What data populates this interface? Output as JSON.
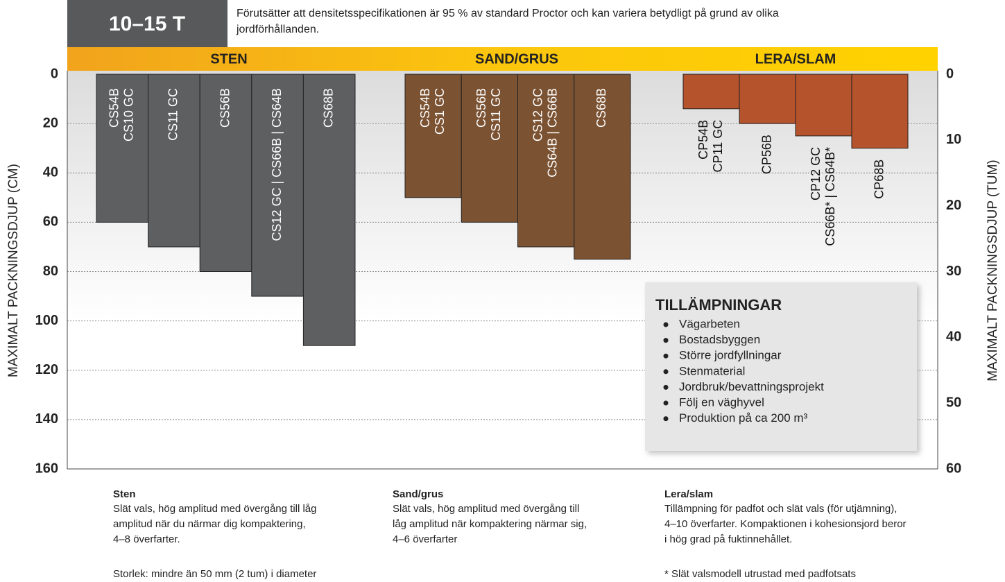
{
  "chart_data": {
    "type": "bar",
    "badge": "10–15 T",
    "note": [
      "Förutsätter att densitetsspecifikationen är 95 % av standard Proctor och kan variera betydligt på grund av olika",
      "jordförhållanden."
    ],
    "ylabel": "MAXIMALT PACKNINGSDJUP  (CM)",
    "y2label": "MAXIMALT PACKNINGSDJUP  (TUM)",
    "ylim": [
      0,
      160
    ],
    "yticks": [
      0,
      20,
      40,
      60,
      80,
      100,
      120,
      140,
      160
    ],
    "y2lim": [
      0,
      60
    ],
    "y2ticks": [
      0,
      10,
      20,
      30,
      40,
      50,
      60
    ],
    "grid": true,
    "groups": [
      {
        "name": "STEN",
        "color": "#5e5f61",
        "categories": [
          [
            "CS54B",
            "CS10 GC"
          ],
          [
            "CS11 GC"
          ],
          [
            "CS56B"
          ],
          [
            "CS12 GC | CS66B | CS64B"
          ],
          [
            "CS68B"
          ]
        ],
        "values": [
          60,
          70,
          80,
          90,
          110
        ]
      },
      {
        "name": "SAND/GRUS",
        "color": "#7b5232",
        "categories": [
          [
            "CS54B",
            "CS1 GC"
          ],
          [
            "CS56B",
            "CS11 GC"
          ],
          [
            "CS12 GC",
            "CS64B | CS66B"
          ],
          [
            "CS68B"
          ]
        ],
        "values": [
          50,
          60,
          70,
          75
        ]
      },
      {
        "name": "LERA/SLAM",
        "color": "#b4532c",
        "categories": [
          [
            "CP54B",
            "CP11 GC"
          ],
          [
            "CP56B"
          ],
          [
            "CP12 GC",
            "CS66B* | CS64B*"
          ],
          [
            "CP68B"
          ]
        ],
        "values": [
          14,
          20,
          25,
          30
        ]
      }
    ],
    "applications": {
      "title": "TILLÄMPNINGAR",
      "items": [
        "Vägarbeten",
        "Bostadsbyggen",
        "Större jordfyllningar",
        "Stenmaterial",
        "Jordbruk/bevattningsprojekt",
        "Följ en väghyvel",
        "Produktion på ca 200 m³"
      ]
    },
    "descriptions": [
      {
        "title": "Sten",
        "lines": [
          "Slät vals, hög amplitud med övergång till låg",
          "amplitud när du närmar dig kompaktering,",
          "4–8 överfarter."
        ],
        "note": "Storlek: mindre än 50 mm (2 tum) i diameter"
      },
      {
        "title": "Sand/grus",
        "lines": [
          "Slät vals, hög amplitud med övergång till",
          "låg amplitud när kompaktering närmar sig,",
          "4–6 överfarter"
        ]
      },
      {
        "title": "Lera/slam",
        "lines": [
          "Tillämpning för padfot och slät vals (för utjämning),",
          "4–10 överfarter. Kompaktionen i kohesionsjord beror",
          "i hög grad på fuktinnehållet."
        ],
        "note": "* Slät valsmodell utrustad med padfotsats"
      }
    ]
  }
}
